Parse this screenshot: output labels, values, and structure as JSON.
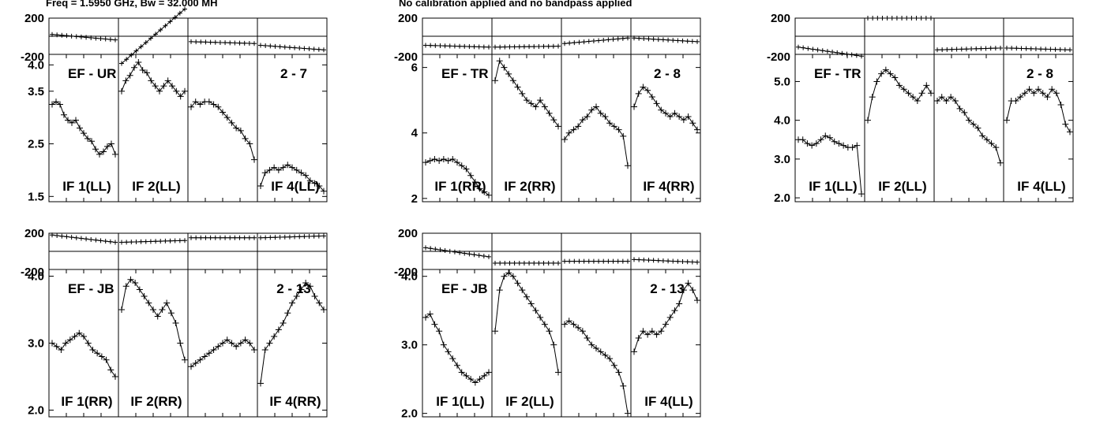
{
  "header": {
    "freq": "Freq = 1.5950 GHz, Bw = 32.000 MH",
    "calibration": "No calibration applied and no bandpass applied"
  },
  "colors": {
    "ink": "#000000",
    "background": "#ffffff"
  },
  "chart_data": [
    {
      "type": "line",
      "baseline": "EF - UR",
      "pair": "2 - 7",
      "phase_ticks": [
        "200",
        "-200"
      ],
      "amp_ticks": [
        "4.0",
        "3.5",
        "2.5",
        "1.5"
      ],
      "ylim": [
        1.4,
        4.2
      ],
      "panels": [
        {
          "label": "IF 1(LL)",
          "phase": [
            20,
            -40
          ],
          "amp": [
            3.25,
            3.3,
            3.25,
            3.05,
            2.95,
            2.9,
            2.95,
            2.8,
            2.7,
            2.6,
            2.55,
            2.4,
            2.3,
            2.35,
            2.45,
            2.5,
            2.3
          ]
        },
        {
          "label": "IF 2(LL)",
          "phase": [
            -300,
            300
          ],
          "amp": [
            3.5,
            3.7,
            3.8,
            3.95,
            4.05,
            3.9,
            3.85,
            3.7,
            3.6,
            3.5,
            3.6,
            3.7,
            3.6,
            3.5,
            3.4,
            3.5
          ]
        },
        {
          "label": "",
          "phase": [
            -60,
            -80
          ],
          "amp": [
            3.2,
            3.3,
            3.25,
            3.3,
            3.3,
            3.25,
            3.2,
            3.1,
            3.0,
            2.9,
            2.8,
            2.75,
            2.6,
            2.5,
            2.2
          ]
        },
        {
          "label": "IF 4(LL)",
          "phase": [
            -100,
            -150
          ],
          "amp": [
            1.7,
            1.95,
            2.0,
            2.05,
            2.0,
            2.05,
            2.1,
            2.05,
            2.0,
            1.95,
            1.9,
            1.8,
            1.75,
            1.7,
            1.6
          ]
        }
      ]
    },
    {
      "type": "line",
      "baseline": "EF - TR",
      "pair": "2 - 8",
      "phase_ticks": [
        "200",
        "-200"
      ],
      "amp_ticks": [
        "6",
        "4",
        "2"
      ],
      "ylim": [
        1.9,
        6.4
      ],
      "panels": [
        {
          "label": "IF 1(RR)",
          "phase": [
            -100,
            -120
          ],
          "amp": [
            3.1,
            3.15,
            3.2,
            3.15,
            3.2,
            3.15,
            3.2,
            3.1,
            3.0,
            2.9,
            2.7,
            2.5,
            2.3,
            2.2,
            2.1
          ]
        },
        {
          "label": "IF 2(RR)",
          "phase": [
            -120,
            -110
          ],
          "amp": [
            5.6,
            6.2,
            6.0,
            5.8,
            5.6,
            5.4,
            5.2,
            5.0,
            4.9,
            4.8,
            5.0,
            4.8,
            4.6,
            4.4,
            4.2
          ]
        },
        {
          "label": "",
          "phase": [
            -80,
            -20
          ],
          "amp": [
            3.8,
            4.0,
            4.1,
            4.2,
            4.4,
            4.5,
            4.7,
            4.8,
            4.6,
            4.5,
            4.3,
            4.2,
            4.1,
            3.9,
            3.0
          ]
        },
        {
          "label": "IF 4(RR)",
          "phase": [
            -20,
            -60
          ],
          "amp": [
            4.8,
            5.2,
            5.4,
            5.3,
            5.1,
            4.9,
            4.7,
            4.6,
            4.5,
            4.6,
            4.5,
            4.4,
            4.5,
            4.3,
            4.1
          ]
        }
      ]
    },
    {
      "type": "line",
      "baseline": "EF - TR",
      "pair": "2 - 8",
      "phase_ticks": [
        "200",
        "-200"
      ],
      "amp_ticks": [
        "5.0",
        "4.0",
        "3.0",
        "2.0"
      ],
      "ylim": [
        1.9,
        5.7
      ],
      "panels": [
        {
          "label": "IF 1(LL)",
          "phase": [
            -120,
            -220
          ],
          "amp": [
            3.5,
            3.5,
            3.4,
            3.35,
            3.4,
            3.5,
            3.6,
            3.55,
            3.45,
            3.4,
            3.35,
            3.3,
            3.3,
            3.35,
            2.1
          ]
        },
        {
          "label": "IF 2(LL)",
          "phase": [
            200,
            200
          ],
          "amp": [
            4.0,
            4.6,
            5.0,
            5.2,
            5.3,
            5.2,
            5.1,
            4.9,
            4.8,
            4.7,
            4.6,
            4.5,
            4.7,
            4.9,
            4.7
          ]
        },
        {
          "label": "",
          "phase": [
            -150,
            -130
          ],
          "amp": [
            4.5,
            4.6,
            4.5,
            4.6,
            4.5,
            4.3,
            4.2,
            4.0,
            3.9,
            3.8,
            3.6,
            3.5,
            3.4,
            3.3,
            2.9
          ]
        },
        {
          "label": "IF 4(LL)",
          "phase": [
            -130,
            -150
          ],
          "amp": [
            4.0,
            4.5,
            4.5,
            4.6,
            4.7,
            4.8,
            4.7,
            4.8,
            4.7,
            4.6,
            4.8,
            4.7,
            4.4,
            3.9,
            3.7
          ]
        }
      ]
    },
    {
      "type": "line",
      "baseline": "EF - JB",
      "pair": "2 - 13",
      "phase_ticks": [
        "200",
        "-200"
      ],
      "amp_ticks": [
        "4.0",
        "3.0",
        "2.0"
      ],
      "ylim": [
        1.9,
        4.1
      ],
      "panels": [
        {
          "label": "IF 1(RR)",
          "phase": [
            180,
            100
          ],
          "amp": [
            3.0,
            2.95,
            2.9,
            3.0,
            3.05,
            3.1,
            3.15,
            3.1,
            3.0,
            2.9,
            2.85,
            2.8,
            2.75,
            2.6,
            2.5
          ]
        },
        {
          "label": "IF 2(RR)",
          "phase": [
            100,
            120
          ],
          "amp": [
            3.5,
            3.85,
            3.95,
            3.9,
            3.8,
            3.7,
            3.6,
            3.5,
            3.4,
            3.5,
            3.6,
            3.45,
            3.3,
            3.0,
            2.75
          ]
        },
        {
          "label": "",
          "phase": [
            150,
            150
          ],
          "amp": [
            2.65,
            2.7,
            2.75,
            2.8,
            2.85,
            2.9,
            2.95,
            3.0,
            3.05,
            3.0,
            2.95,
            3.0,
            3.05,
            3.0,
            2.9
          ]
        },
        {
          "label": "IF 4(RR)",
          "phase": [
            150,
            170
          ],
          "amp": [
            2.4,
            2.9,
            3.0,
            3.1,
            3.2,
            3.3,
            3.45,
            3.6,
            3.7,
            3.8,
            3.9,
            3.85,
            3.7,
            3.6,
            3.5
          ]
        }
      ]
    },
    {
      "type": "line",
      "baseline": "EF - JB",
      "pair": "2 - 13",
      "phase_ticks": [
        "200",
        "-200"
      ],
      "amp_ticks": [
        "4.0",
        "3.0",
        "2.0"
      ],
      "ylim": [
        1.95,
        4.1
      ],
      "panels": [
        {
          "label": "IF 1(LL)",
          "phase": [
            40,
            -60
          ],
          "amp": [
            3.4,
            3.45,
            3.3,
            3.2,
            3.0,
            2.9,
            2.8,
            2.7,
            2.6,
            2.55,
            2.5,
            2.45,
            2.5,
            2.55,
            2.6
          ]
        },
        {
          "label": "IF 2(LL)",
          "phase": [
            -130,
            -130
          ],
          "amp": [
            3.2,
            3.8,
            4.0,
            4.05,
            4.0,
            3.9,
            3.8,
            3.7,
            3.6,
            3.5,
            3.4,
            3.3,
            3.2,
            3.0,
            2.6
          ]
        },
        {
          "label": "",
          "phase": [
            -110,
            -110
          ],
          "amp": [
            3.3,
            3.35,
            3.3,
            3.25,
            3.2,
            3.1,
            3.0,
            2.95,
            2.9,
            2.85,
            2.8,
            2.7,
            2.6,
            2.4,
            2.0
          ]
        },
        {
          "label": "IF 4(LL)",
          "phase": [
            -90,
            -120
          ],
          "amp": [
            2.9,
            3.1,
            3.2,
            3.15,
            3.2,
            3.15,
            3.2,
            3.3,
            3.4,
            3.5,
            3.6,
            3.8,
            3.9,
            3.8,
            3.65
          ]
        }
      ]
    }
  ]
}
